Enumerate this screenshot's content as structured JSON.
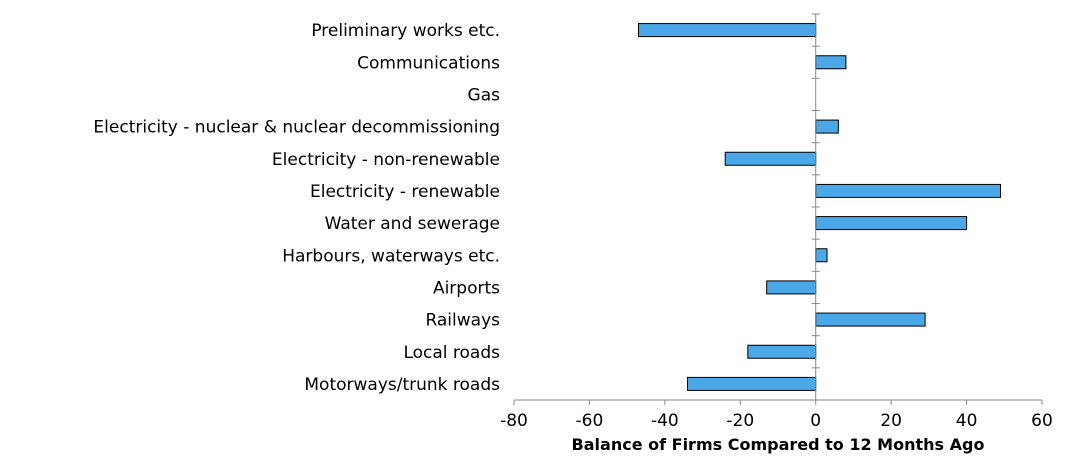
{
  "chart_data": {
    "type": "bar",
    "orientation": "horizontal",
    "categories": [
      "Preliminary works etc.",
      "Communications",
      "Gas",
      "Electricity - nuclear & nuclear decommissioning",
      "Electricity - non-renewable",
      "Electricity - renewable",
      "Water and sewerage",
      "Harbours, waterways etc.",
      "Airports",
      "Railways",
      "Local roads",
      "Motorways/trunk roads"
    ],
    "values": [
      -47,
      8,
      0,
      6,
      -24,
      49,
      40,
      3,
      -13,
      29,
      -18,
      -34
    ],
    "xlabel": "Balance of Firms Compared to 12 Months Ago",
    "ylabel": "",
    "xlim": [
      -80,
      60
    ],
    "ticks": [
      "-80",
      "-60",
      "-40",
      "-20",
      "0",
      "20",
      "40",
      "60"
    ],
    "grid": false,
    "legend": "none",
    "colors": {
      "bar_fill": "#4aa8e8",
      "bar_stroke": "#000000",
      "axis": "#888888"
    }
  }
}
